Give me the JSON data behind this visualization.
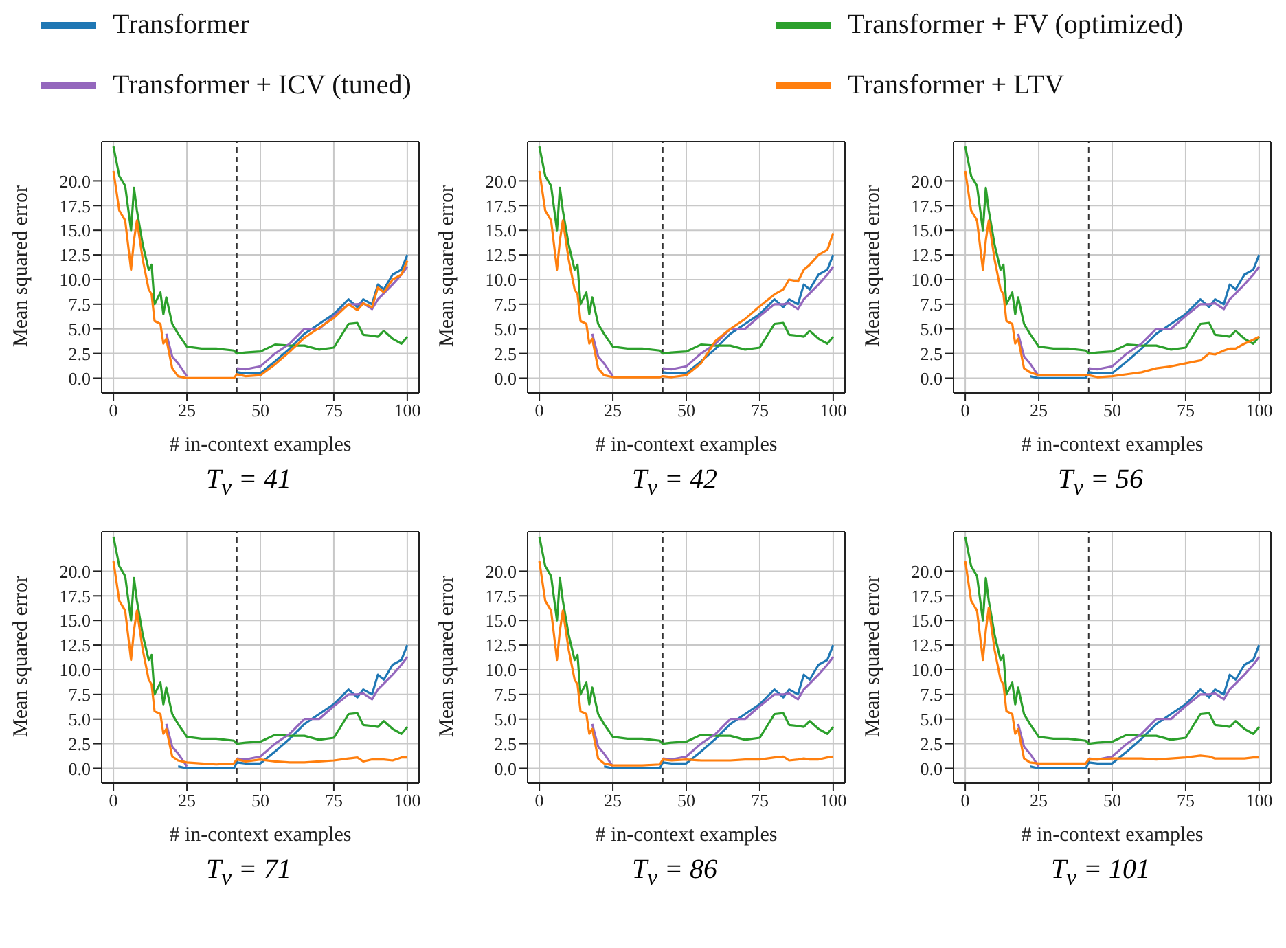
{
  "chart_data": [
    {
      "type": "line",
      "title": "T$_{v}$ = 41",
      "xlabel": "# in-context examples",
      "ylabel": "Mean squared error",
      "legend": "top",
      "grid": true,
      "x": [
        0,
        2,
        4,
        6,
        7,
        8,
        10,
        12,
        13,
        14,
        16,
        17,
        18,
        20,
        22,
        25,
        30,
        35,
        41,
        42,
        45,
        50,
        55,
        60,
        65,
        70,
        75,
        80,
        83,
        85,
        88,
        90,
        92,
        95,
        98,
        100
      ],
      "series": [
        {
          "name": "Transformer",
          "color": "#1f77b4",
          "values": [
            null,
            null,
            null,
            null,
            null,
            null,
            null,
            null,
            null,
            null,
            null,
            null,
            null,
            null,
            null,
            null,
            null,
            null,
            null,
            0.6,
            0.5,
            0.5,
            1.7,
            3,
            4.5,
            5.5,
            6.5,
            8,
            7.2,
            8,
            7.5,
            9.5,
            9,
            10.5,
            11,
            12.5
          ]
        },
        {
          "name": "Transformer + FV (optimized)",
          "color": "#2ca02c",
          "values": [
            23.5,
            20.5,
            19.5,
            15,
            19.3,
            17,
            13.5,
            11,
            11.5,
            7.5,
            8.7,
            6.5,
            8.2,
            5.5,
            4.5,
            3.2,
            3,
            3,
            2.8,
            2.5,
            2.6,
            2.7,
            3.4,
            3.3,
            3.3,
            2.9,
            3.1,
            5.5,
            5.6,
            4.4,
            4.3,
            4.2,
            4.8,
            4,
            3.5,
            4.2
          ]
        },
        {
          "name": "Transformer + ICV (tuned)",
          "color": "#9467bd",
          "values": [
            null,
            null,
            null,
            null,
            null,
            null,
            null,
            null,
            null,
            null,
            null,
            null,
            4.5,
            2.2,
            1.5,
            0.2,
            null,
            null,
            null,
            1.0,
            0.9,
            1.2,
            2.5,
            3.5,
            5,
            5.0,
            6.3,
            7.5,
            7.5,
            7.6,
            7.0,
            8,
            8.6,
            9.5,
            10.5,
            11.3
          ]
        },
        {
          "name": "Transformer + LTV",
          "color": "#ff7f0e",
          "values": [
            21,
            17,
            16,
            11,
            14,
            16,
            12,
            9,
            8.5,
            5.8,
            5.5,
            3.5,
            4,
            1,
            0.2,
            0,
            0,
            0,
            0,
            0.4,
            0.2,
            0.3,
            1.4,
            2.7,
            4.1,
            5.1,
            6.1,
            7.5,
            6.9,
            7.6,
            7.2,
            9.2,
            8.7,
            10,
            10.5,
            11.9
          ]
        }
      ],
      "xlim": [
        -4,
        104
      ],
      "ylim": [
        -1.5,
        24
      ],
      "xticks": [
        0,
        25,
        50,
        75,
        100
      ],
      "yticks": [
        {
          "value": 0,
          "label": "0.0"
        },
        {
          "value": 2.5,
          "label": "2.5"
        },
        {
          "value": 5,
          "label": "5.0"
        },
        {
          "value": 7.5,
          "label": "7.5"
        },
        {
          "value": 10,
          "label": "10.0"
        },
        {
          "value": 12.5,
          "label": "12.5"
        },
        {
          "value": 15,
          "label": "15.0"
        },
        {
          "value": 17.5,
          "label": "17.5"
        },
        {
          "value": 20,
          "label": "20.0"
        }
      ],
      "ref_lines": [
        {
          "axis": "x",
          "value": 42,
          "color": "#333333",
          "line_style": "dashed"
        }
      ]
    },
    {
      "type": "line",
      "title": "T$_{v}$ = 42",
      "xlabel": "# in-context examples",
      "ylabel": "Mean squared error",
      "grid": true,
      "x": [
        0,
        2,
        4,
        6,
        7,
        8,
        10,
        12,
        13,
        14,
        16,
        17,
        18,
        20,
        22,
        25,
        30,
        35,
        41,
        42,
        45,
        50,
        55,
        60,
        65,
        70,
        75,
        80,
        83,
        85,
        88,
        90,
        92,
        95,
        98,
        100
      ],
      "series": [
        {
          "color": "#1f77b4",
          "values": [
            null,
            null,
            null,
            null,
            null,
            null,
            null,
            null,
            null,
            null,
            null,
            null,
            null,
            null,
            null,
            null,
            null,
            null,
            null,
            0.6,
            0.5,
            0.5,
            1.7,
            3,
            4.5,
            5.5,
            6.5,
            8,
            7.2,
            8,
            7.5,
            9.5,
            9,
            10.5,
            11,
            12.5
          ]
        },
        {
          "color": "#2ca02c",
          "values": [
            23.5,
            20.5,
            19.5,
            15,
            19.3,
            17,
            13.5,
            11,
            11.5,
            7.5,
            8.7,
            6.5,
            8.2,
            5.5,
            4.5,
            3.2,
            3,
            3,
            2.8,
            2.5,
            2.6,
            2.7,
            3.4,
            3.3,
            3.3,
            2.9,
            3.1,
            5.5,
            5.6,
            4.4,
            4.3,
            4.2,
            4.8,
            4,
            3.5,
            4.2
          ]
        },
        {
          "color": "#9467bd",
          "values": [
            null,
            null,
            null,
            null,
            null,
            null,
            null,
            null,
            null,
            null,
            null,
            null,
            4.5,
            2.2,
            1.5,
            0.2,
            null,
            null,
            null,
            1.0,
            0.9,
            1.2,
            2.5,
            3.5,
            5,
            5.0,
            6.3,
            7.5,
            7.5,
            7.6,
            7.0,
            8,
            8.6,
            9.5,
            10.5,
            11.3
          ]
        },
        {
          "color": "#ff7f0e",
          "values": [
            21,
            17,
            16,
            11,
            14,
            16,
            12,
            9,
            8.5,
            5.8,
            5.5,
            3.5,
            4,
            1,
            0.3,
            0.1,
            0.1,
            0.1,
            0.1,
            0.2,
            0.1,
            0.3,
            1.5,
            3.8,
            5,
            6,
            7.3,
            8.5,
            9,
            10,
            9.8,
            11,
            11.5,
            12.5,
            13,
            14.7
          ]
        }
      ],
      "xlim": [
        -4,
        104
      ],
      "ylim": [
        -1.5,
        24
      ],
      "xticks": [
        0,
        25,
        50,
        75,
        100
      ],
      "yticks": [
        {
          "value": 0,
          "label": "0.0"
        },
        {
          "value": 2.5,
          "label": "2.5"
        },
        {
          "value": 5,
          "label": "5.0"
        },
        {
          "value": 7.5,
          "label": "7.5"
        },
        {
          "value": 10,
          "label": "10.0"
        },
        {
          "value": 12.5,
          "label": "12.5"
        },
        {
          "value": 15,
          "label": "15.0"
        },
        {
          "value": 17.5,
          "label": "17.5"
        },
        {
          "value": 20,
          "label": "20.0"
        }
      ],
      "ref_lines": [
        {
          "axis": "x",
          "value": 42,
          "color": "#333333",
          "line_style": "dashed"
        }
      ]
    },
    {
      "type": "line",
      "title": "T$_{v}$ = 56",
      "xlabel": "# in-context examples",
      "ylabel": "Mean squared error",
      "grid": true,
      "x": [
        0,
        2,
        4,
        6,
        7,
        8,
        10,
        12,
        13,
        14,
        16,
        17,
        18,
        20,
        22,
        25,
        30,
        35,
        41,
        42,
        45,
        50,
        55,
        60,
        65,
        70,
        75,
        80,
        83,
        85,
        88,
        90,
        92,
        95,
        98,
        100
      ],
      "series": [
        {
          "color": "#1f77b4",
          "values": [
            null,
            null,
            null,
            null,
            null,
            null,
            null,
            null,
            null,
            null,
            null,
            null,
            null,
            null,
            0.2,
            0,
            0,
            0,
            0,
            0.6,
            0.5,
            0.5,
            1.7,
            3,
            4.5,
            5.5,
            6.5,
            8,
            7.2,
            8,
            7.5,
            9.5,
            9,
            10.5,
            11,
            12.5
          ]
        },
        {
          "color": "#2ca02c",
          "values": [
            23.5,
            20.5,
            19.5,
            15,
            19.3,
            17,
            13.5,
            11,
            11.5,
            7.5,
            8.7,
            6.5,
            8.2,
            5.5,
            4.5,
            3.2,
            3,
            3,
            2.8,
            2.5,
            2.6,
            2.7,
            3.4,
            3.3,
            3.3,
            2.9,
            3.1,
            5.5,
            5.6,
            4.4,
            4.3,
            4.2,
            4.8,
            4,
            3.5,
            4.2
          ]
        },
        {
          "color": "#9467bd",
          "values": [
            null,
            null,
            null,
            null,
            null,
            null,
            null,
            null,
            null,
            null,
            null,
            null,
            4.5,
            2.2,
            1.5,
            0.2,
            null,
            null,
            null,
            1.0,
            0.9,
            1.2,
            2.5,
            3.5,
            5,
            5.0,
            6.3,
            7.5,
            7.5,
            7.6,
            7.0,
            8,
            8.6,
            9.5,
            10.5,
            11.3
          ]
        },
        {
          "color": "#ff7f0e",
          "values": [
            21,
            17,
            16,
            11,
            14,
            16,
            12,
            9,
            8.5,
            5.8,
            5.5,
            3.5,
            4,
            1,
            0.6,
            0.3,
            0.3,
            0.3,
            0.3,
            0.3,
            0.1,
            0.2,
            0.4,
            0.6,
            1,
            1.2,
            1.5,
            1.8,
            2.5,
            2.4,
            2.8,
            3,
            3,
            3.5,
            3.9,
            4.2
          ]
        }
      ],
      "xlim": [
        -4,
        104
      ],
      "ylim": [
        -1.5,
        24
      ],
      "xticks": [
        0,
        25,
        50,
        75,
        100
      ],
      "yticks": [
        {
          "value": 0,
          "label": "0.0"
        },
        {
          "value": 2.5,
          "label": "2.5"
        },
        {
          "value": 5,
          "label": "5.0"
        },
        {
          "value": 7.5,
          "label": "7.5"
        },
        {
          "value": 10,
          "label": "10.0"
        },
        {
          "value": 12.5,
          "label": "12.5"
        },
        {
          "value": 15,
          "label": "15.0"
        },
        {
          "value": 17.5,
          "label": "17.5"
        },
        {
          "value": 20,
          "label": "20.0"
        }
      ],
      "ref_lines": [
        {
          "axis": "x",
          "value": 42,
          "color": "#333333",
          "line_style": "dashed"
        }
      ]
    },
    {
      "type": "line",
      "title": "T$_{v}$ = 71",
      "xlabel": "# in-context examples",
      "ylabel": "Mean squared error",
      "grid": true,
      "x": [
        0,
        2,
        4,
        6,
        7,
        8,
        10,
        12,
        13,
        14,
        16,
        17,
        18,
        20,
        22,
        25,
        30,
        35,
        41,
        42,
        45,
        50,
        55,
        60,
        65,
        70,
        75,
        80,
        83,
        85,
        88,
        90,
        92,
        95,
        98,
        100
      ],
      "series": [
        {
          "color": "#1f77b4",
          "values": [
            null,
            null,
            null,
            null,
            null,
            null,
            null,
            null,
            null,
            null,
            null,
            null,
            null,
            null,
            0.2,
            0,
            0,
            0,
            0,
            0.6,
            0.5,
            0.5,
            1.7,
            3,
            4.5,
            5.5,
            6.5,
            8,
            7.2,
            8,
            7.5,
            9.5,
            9,
            10.5,
            11,
            12.5
          ]
        },
        {
          "color": "#2ca02c",
          "values": [
            23.5,
            20.5,
            19.5,
            15,
            19.3,
            17,
            13.5,
            11,
            11.5,
            7.5,
            8.7,
            6.5,
            8.2,
            5.5,
            4.5,
            3.2,
            3,
            3,
            2.8,
            2.5,
            2.6,
            2.7,
            3.4,
            3.3,
            3.3,
            2.9,
            3.1,
            5.5,
            5.6,
            4.4,
            4.3,
            4.2,
            4.8,
            4,
            3.5,
            4.2
          ]
        },
        {
          "color": "#9467bd",
          "values": [
            null,
            null,
            null,
            null,
            null,
            null,
            null,
            null,
            null,
            null,
            null,
            null,
            4.5,
            2.2,
            1.5,
            0.2,
            null,
            null,
            null,
            1.0,
            0.9,
            1.2,
            2.5,
            3.5,
            5,
            5.0,
            6.3,
            7.5,
            7.5,
            7.6,
            7.0,
            8,
            8.6,
            9.5,
            10.5,
            11.3
          ]
        },
        {
          "color": "#ff7f0e",
          "values": [
            21,
            17,
            16,
            11,
            14,
            16,
            12,
            9,
            8.5,
            5.8,
            5.5,
            3.5,
            4,
            1.2,
            0.8,
            0.6,
            0.5,
            0.4,
            0.5,
            0.9,
            0.7,
            0.9,
            0.7,
            0.6,
            0.6,
            0.7,
            0.8,
            1,
            1.1,
            0.7,
            0.9,
            0.9,
            0.9,
            0.8,
            1.1,
            1.1
          ]
        }
      ],
      "xlim": [
        -4,
        104
      ],
      "ylim": [
        -1.5,
        24
      ],
      "xticks": [
        0,
        25,
        50,
        75,
        100
      ],
      "yticks": [
        {
          "value": 0,
          "label": "0.0"
        },
        {
          "value": 2.5,
          "label": "2.5"
        },
        {
          "value": 5,
          "label": "5.0"
        },
        {
          "value": 7.5,
          "label": "7.5"
        },
        {
          "value": 10,
          "label": "10.0"
        },
        {
          "value": 12.5,
          "label": "12.5"
        },
        {
          "value": 15,
          "label": "15.0"
        },
        {
          "value": 17.5,
          "label": "17.5"
        },
        {
          "value": 20,
          "label": "20.0"
        }
      ],
      "ref_lines": [
        {
          "axis": "x",
          "value": 42,
          "color": "#333333",
          "line_style": "dashed"
        }
      ]
    },
    {
      "type": "line",
      "title": "T$_{v}$ = 86",
      "xlabel": "# in-context examples",
      "ylabel": "Mean squared error",
      "grid": true,
      "x": [
        0,
        2,
        4,
        6,
        7,
        8,
        10,
        12,
        13,
        14,
        16,
        17,
        18,
        20,
        22,
        25,
        30,
        35,
        41,
        42,
        45,
        50,
        55,
        60,
        65,
        70,
        75,
        80,
        83,
        85,
        88,
        90,
        92,
        95,
        98,
        100
      ],
      "series": [
        {
          "color": "#1f77b4",
          "values": [
            null,
            null,
            null,
            null,
            null,
            null,
            null,
            null,
            null,
            null,
            null,
            null,
            null,
            null,
            0.2,
            0,
            0,
            0,
            0,
            0.6,
            0.5,
            0.5,
            1.7,
            3,
            4.5,
            5.5,
            6.5,
            8,
            7.2,
            8,
            7.5,
            9.5,
            9,
            10.5,
            11,
            12.5
          ]
        },
        {
          "color": "#2ca02c",
          "values": [
            23.5,
            20.5,
            19.5,
            15,
            19.3,
            17,
            13.5,
            11,
            11.5,
            7.5,
            8.7,
            6.5,
            8.2,
            5.5,
            4.5,
            3.2,
            3,
            3,
            2.8,
            2.5,
            2.6,
            2.7,
            3.4,
            3.3,
            3.3,
            2.9,
            3.1,
            5.5,
            5.6,
            4.4,
            4.3,
            4.2,
            4.8,
            4,
            3.5,
            4.2
          ]
        },
        {
          "color": "#9467bd",
          "values": [
            null,
            null,
            null,
            null,
            null,
            null,
            null,
            null,
            null,
            null,
            null,
            null,
            4.5,
            2.2,
            1.5,
            0.2,
            null,
            null,
            null,
            1.0,
            0.9,
            1.2,
            2.5,
            3.5,
            5,
            5.0,
            6.3,
            7.5,
            7.5,
            7.6,
            7.0,
            8,
            8.6,
            9.5,
            10.5,
            11.3
          ]
        },
        {
          "color": "#ff7f0e",
          "values": [
            21,
            17,
            16,
            11,
            14,
            16,
            12,
            9,
            8.5,
            5.8,
            5.5,
            3.5,
            4,
            1,
            0.5,
            0.3,
            0.3,
            0.3,
            0.4,
            0.9,
            0.8,
            0.9,
            0.8,
            0.8,
            0.8,
            0.9,
            0.9,
            1.1,
            1.2,
            0.8,
            0.9,
            1,
            0.9,
            0.9,
            1.1,
            1.2
          ]
        }
      ],
      "xlim": [
        -4,
        104
      ],
      "ylim": [
        -1.5,
        24
      ],
      "xticks": [
        0,
        25,
        50,
        75,
        100
      ],
      "yticks": [
        {
          "value": 0,
          "label": "0.0"
        },
        {
          "value": 2.5,
          "label": "2.5"
        },
        {
          "value": 5,
          "label": "5.0"
        },
        {
          "value": 7.5,
          "label": "7.5"
        },
        {
          "value": 10,
          "label": "10.0"
        },
        {
          "value": 12.5,
          "label": "12.5"
        },
        {
          "value": 15,
          "label": "15.0"
        },
        {
          "value": 17.5,
          "label": "17.5"
        },
        {
          "value": 20,
          "label": "20.0"
        }
      ],
      "ref_lines": [
        {
          "axis": "x",
          "value": 42,
          "color": "#333333",
          "line_style": "dashed"
        }
      ]
    },
    {
      "type": "line",
      "title": "T$_{v}$ = 101",
      "xlabel": "# in-context examples",
      "ylabel": "Mean squared error",
      "grid": true,
      "x": [
        0,
        2,
        4,
        6,
        7,
        8,
        10,
        12,
        13,
        14,
        16,
        17,
        18,
        20,
        22,
        25,
        30,
        35,
        41,
        42,
        45,
        50,
        55,
        60,
        65,
        70,
        75,
        80,
        83,
        85,
        88,
        90,
        92,
        95,
        98,
        100
      ],
      "series": [
        {
          "color": "#1f77b4",
          "values": [
            null,
            null,
            null,
            null,
            null,
            null,
            null,
            null,
            null,
            null,
            null,
            null,
            null,
            null,
            0.2,
            0,
            0,
            0,
            0,
            0.6,
            0.5,
            0.5,
            1.7,
            3,
            4.5,
            5.5,
            6.5,
            8,
            7.2,
            8,
            7.5,
            9.5,
            9,
            10.5,
            11,
            12.5
          ]
        },
        {
          "color": "#2ca02c",
          "values": [
            23.5,
            20.5,
            19.5,
            15,
            19.3,
            17,
            13.5,
            11,
            11.5,
            7.5,
            8.7,
            6.5,
            8.2,
            5.5,
            4.5,
            3.2,
            3,
            3,
            2.8,
            2.5,
            2.6,
            2.7,
            3.4,
            3.3,
            3.3,
            2.9,
            3.1,
            5.5,
            5.6,
            4.4,
            4.3,
            4.2,
            4.8,
            4,
            3.5,
            4.2
          ]
        },
        {
          "color": "#9467bd",
          "values": [
            null,
            null,
            null,
            null,
            null,
            null,
            null,
            null,
            null,
            null,
            null,
            null,
            4.5,
            2.2,
            1.5,
            0.2,
            null,
            null,
            null,
            1.0,
            0.9,
            1.2,
            2.5,
            3.5,
            5,
            5.0,
            6.3,
            7.5,
            7.5,
            7.6,
            7.0,
            8,
            8.6,
            9.5,
            10.5,
            11.3
          ]
        },
        {
          "color": "#ff7f0e",
          "values": [
            21,
            17,
            16,
            11,
            14,
            16.3,
            12,
            9,
            8.5,
            5.8,
            5.5,
            3.5,
            4,
            1,
            0.6,
            0.5,
            0.5,
            0.5,
            0.5,
            0.9,
            0.9,
            1,
            1,
            1,
            0.9,
            1,
            1.1,
            1.3,
            1.2,
            1,
            1,
            1,
            1,
            1,
            1.1,
            1.1
          ]
        }
      ],
      "xlim": [
        -4,
        104
      ],
      "ylim": [
        -1.5,
        24
      ],
      "xticks": [
        0,
        25,
        50,
        75,
        100
      ],
      "yticks": [
        {
          "value": 0,
          "label": "0.0"
        },
        {
          "value": 2.5,
          "label": "2.5"
        },
        {
          "value": 5,
          "label": "5.0"
        },
        {
          "value": 7.5,
          "label": "7.5"
        },
        {
          "value": 10,
          "label": "10.0"
        },
        {
          "value": 12.5,
          "label": "12.5"
        },
        {
          "value": 15,
          "label": "15.0"
        },
        {
          "value": 17.5,
          "label": "17.5"
        },
        {
          "value": 20,
          "label": "20.0"
        }
      ],
      "ref_lines": [
        {
          "axis": "x",
          "value": 42,
          "color": "#333333",
          "line_style": "dashed"
        }
      ]
    }
  ]
}
